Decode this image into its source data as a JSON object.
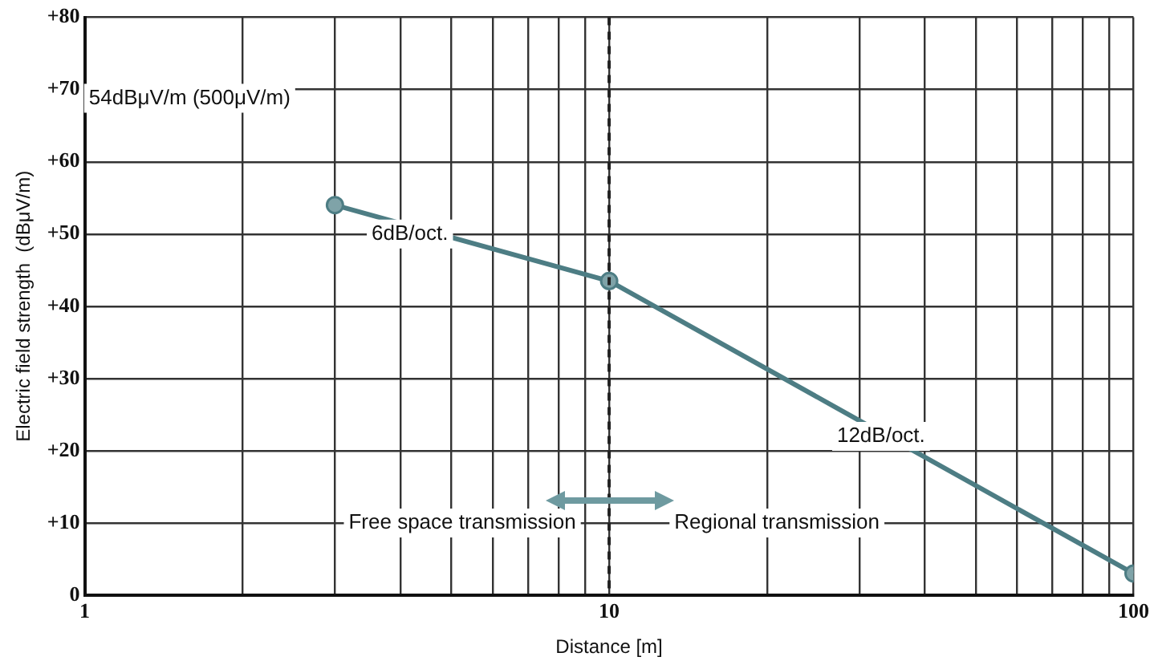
{
  "chart_data": {
    "type": "line",
    "xlabel": "Distance [m]",
    "ylabel": "Electric field strength  (dBμV/m)",
    "x": [
      3,
      10,
      100
    ],
    "series": [
      {
        "color": "#4d7d84",
        "values": [
          54,
          43.5,
          3
        ]
      }
    ],
    "log": "x",
    "xlim": [
      1,
      100
    ],
    "xticks": [
      1,
      {
        "value": 2,
        "label": null
      },
      {
        "value": 3,
        "label": null
      },
      {
        "value": 4,
        "label": null
      },
      {
        "value": 5,
        "label": null
      },
      {
        "value": 6,
        "label": null
      },
      {
        "value": 7,
        "label": null
      },
      {
        "value": 8,
        "label": null
      },
      {
        "value": 9,
        "label": null
      },
      10,
      {
        "value": 20,
        "label": null
      },
      {
        "value": 30,
        "label": null
      },
      {
        "value": 40,
        "label": null
      },
      {
        "value": 50,
        "label": null
      },
      {
        "value": 60,
        "label": null
      },
      {
        "value": 70,
        "label": null
      },
      {
        "value": 80,
        "label": null
      },
      {
        "value": 90,
        "label": null
      },
      100
    ],
    "ylim": [
      0,
      80
    ],
    "yticks": [
      0,
      {
        "value": 10,
        "label": "+10"
      },
      {
        "value": 20,
        "label": "+20"
      },
      {
        "value": 30,
        "label": "+30"
      },
      {
        "value": 40,
        "label": "+40"
      },
      {
        "value": 50,
        "label": "+50"
      },
      {
        "value": 60,
        "label": "+60"
      },
      {
        "value": 70,
        "label": "+70"
      },
      {
        "value": 80,
        "label": "+80"
      }
    ],
    "grid": true,
    "legend": false,
    "marker": "circle",
    "line_style": "solid",
    "ref_lines": [
      {
        "axis": "x",
        "value": 10,
        "line_style": "dashed",
        "color": "#222222"
      }
    ],
    "annotations": [
      "54dBμV/m (500μV/m)",
      "6dB/oct.",
      {
        "text": "12dB/oct.",
        "x": 33,
        "y": 22
      },
      "Free space transmission",
      "Regional transmission"
    ]
  }
}
